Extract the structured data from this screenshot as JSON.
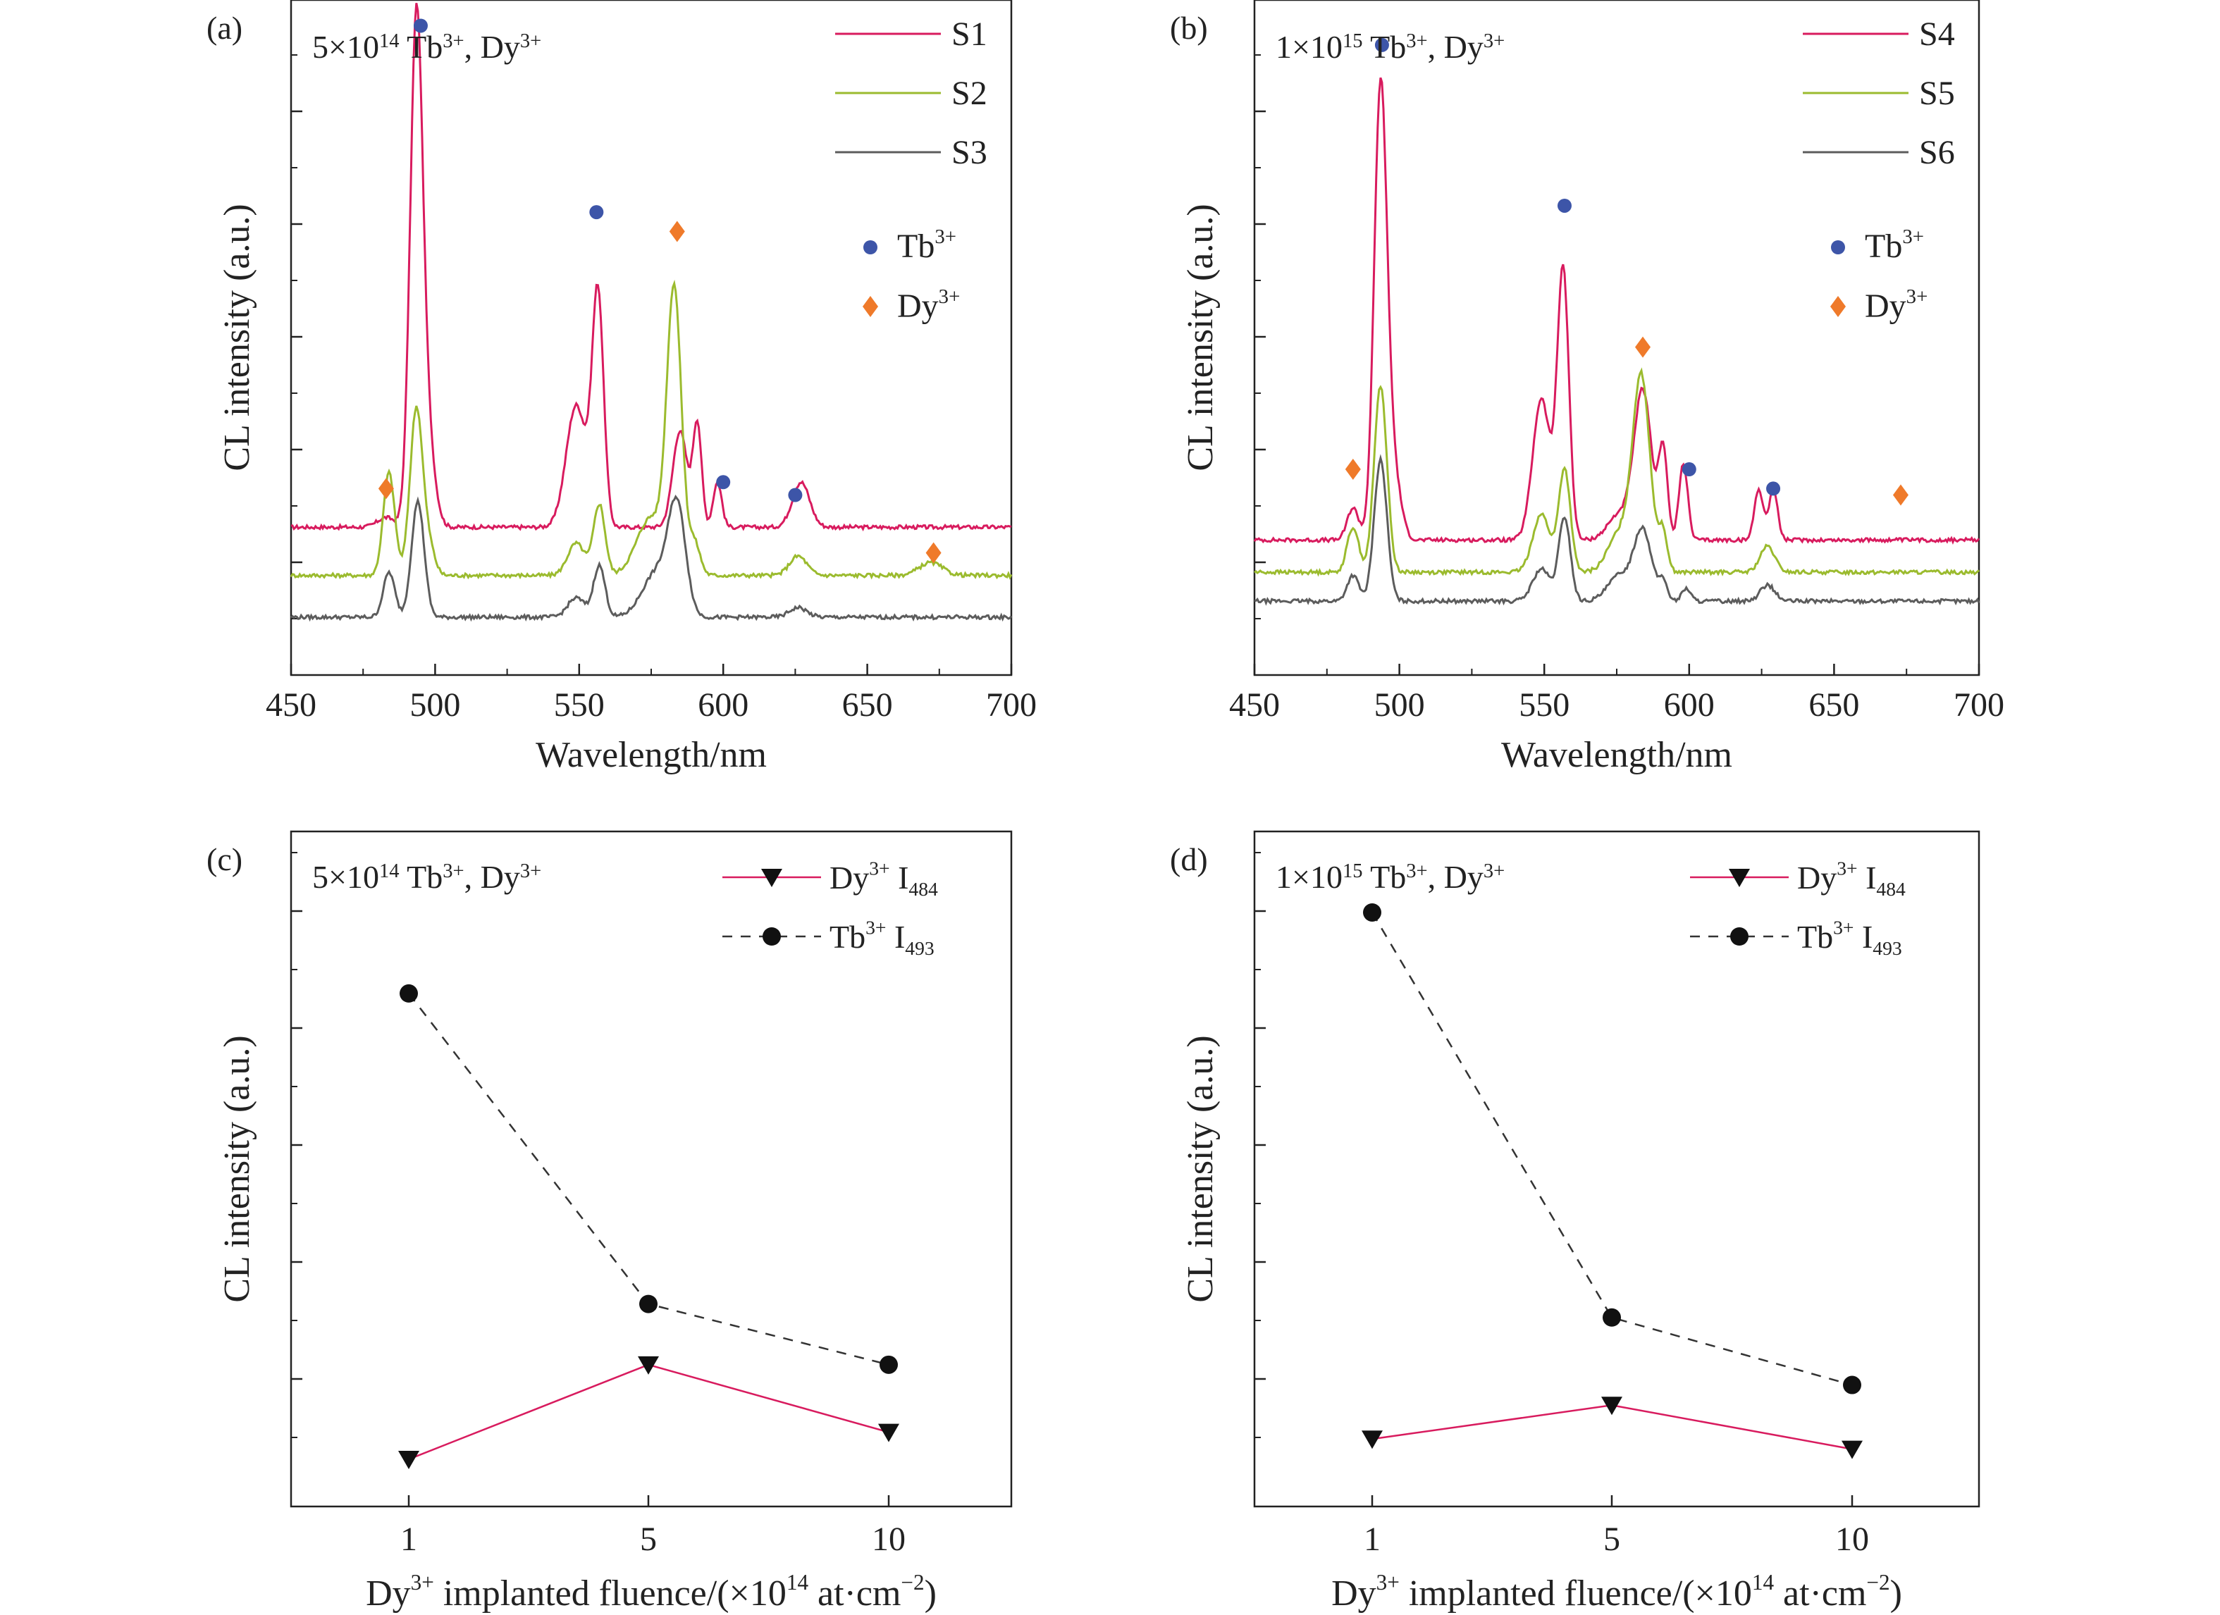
{
  "colors": {
    "s_red": "#d81b5e",
    "s_green": "#9bbb2e",
    "s_green_dark": "#4a9a3e",
    "s_gray": "#5c5c5c",
    "tb_marker": "#3d55a8",
    "dy_marker": "#ef7a2a",
    "dy_line": "#d81b5e",
    "tb_line": "#333333",
    "black": "#111111"
  },
  "chart_data": [
    {
      "panel": "(a)",
      "type": "line",
      "annotation": "5×10¹⁴ Tb³⁺, Dy³⁺",
      "xlabel": "Wavelength/nm",
      "ylabel": "CL intensity (a.u.)",
      "xlim": [
        450,
        700
      ],
      "ylim": [
        -0.05,
        1.0
      ],
      "xticks": [
        "450",
        "500",
        "550",
        "600",
        "650",
        "700"
      ],
      "legend_position": "top-right",
      "series": [
        {
          "name": "S1",
          "color": "#d81b5e",
          "base": 0.18,
          "peaks": [
            [
              483,
              0.015,
              3
            ],
            [
              493.5,
              0.78,
              2.2
            ],
            [
              497.5,
              0.12,
              2.5
            ],
            [
              549,
              0.19,
              3.5
            ],
            [
              556.5,
              0.36,
              2
            ],
            [
              585,
              0.15,
              2.5
            ],
            [
              591,
              0.16,
              1.5
            ],
            [
              598,
              0.07,
              1.5
            ],
            [
              627,
              0.07,
              3
            ]
          ]
        },
        {
          "name": "S2",
          "color": "#9bbb2e",
          "base": 0.105,
          "peaks": [
            [
              484,
              0.16,
              2
            ],
            [
              493.5,
              0.26,
              2.2
            ],
            [
              498,
              0.04,
              2
            ],
            [
              549,
              0.05,
              3
            ],
            [
              557,
              0.11,
              2
            ],
            [
              575,
              0.09,
              5
            ],
            [
              583,
              0.43,
              2.5
            ],
            [
              590,
              0.05,
              2
            ],
            [
              626,
              0.03,
              3
            ],
            [
              672,
              0.02,
              4
            ]
          ]
        },
        {
          "name": "S3",
          "color": "#5c5c5c",
          "base": 0.04,
          "peaks": [
            [
              484,
              0.07,
              2
            ],
            [
              494,
              0.18,
              2.2
            ],
            [
              549,
              0.03,
              3
            ],
            [
              557,
              0.08,
              2
            ],
            [
              577,
              0.07,
              5
            ],
            [
              584,
              0.16,
              3
            ],
            [
              626,
              0.015,
              3
            ]
          ]
        }
      ],
      "markers": {
        "Tb3+": {
          "legend": "Tb",
          "legend_sup": "3+",
          "x": [
            495,
            556,
            600,
            625
          ],
          "y": [
            0.96,
            0.67,
            0.25,
            0.23
          ]
        },
        "Dy3+": {
          "legend": "Dy",
          "legend_sup": "3+",
          "x": [
            483,
            584,
            673
          ],
          "y": [
            0.24,
            0.64,
            0.14
          ]
        }
      }
    },
    {
      "panel": "(b)",
      "type": "line",
      "annotation": "1×10¹⁵ Tb³⁺, Dy³⁺",
      "xlabel": "Wavelength/nm",
      "ylabel": "CL intensity (a.u.)",
      "xlim": [
        450,
        700
      ],
      "ylim": [
        -0.05,
        1.0
      ],
      "xticks": [
        "450",
        "500",
        "550",
        "600",
        "650",
        "700"
      ],
      "legend_position": "top-right",
      "series": [
        {
          "name": "S4",
          "color": "#d81b5e",
          "base": 0.16,
          "peaks": [
            [
              484,
              0.05,
              2
            ],
            [
              493.5,
              0.7,
              2.2
            ],
            [
              498,
              0.1,
              2.5
            ],
            [
              549,
              0.22,
              3
            ],
            [
              556.5,
              0.42,
              2
            ],
            [
              576,
              0.04,
              4
            ],
            [
              584,
              0.23,
              3
            ],
            [
              591,
              0.14,
              1.5
            ],
            [
              598,
              0.12,
              1.5
            ],
            [
              624,
              0.08,
              1.5
            ],
            [
              629,
              0.08,
              1.5
            ]
          ]
        },
        {
          "name": "S5",
          "color": "#9bbb2e",
          "base": 0.11,
          "peaks": [
            [
              484,
              0.07,
              2
            ],
            [
              493.5,
              0.29,
              2.2
            ],
            [
              549,
              0.09,
              3
            ],
            [
              557,
              0.16,
              2
            ],
            [
              576,
              0.06,
              4
            ],
            [
              583.5,
              0.3,
              3
            ],
            [
              591,
              0.06,
              1.5
            ],
            [
              627,
              0.04,
              2.5
            ]
          ]
        },
        {
          "name": "S6",
          "color": "#5c5c5c",
          "base": 0.065,
          "peaks": [
            [
              484,
              0.04,
              2
            ],
            [
              493.5,
              0.22,
              2.2
            ],
            [
              549,
              0.05,
              3
            ],
            [
              557,
              0.13,
              2
            ],
            [
              576,
              0.04,
              4
            ],
            [
              584,
              0.11,
              3
            ],
            [
              591,
              0.03,
              1.5
            ],
            [
              599,
              0.02,
              1.5
            ],
            [
              627,
              0.025,
              2.5
            ]
          ]
        }
      ],
      "markers": {
        "Tb3+": {
          "legend": "Tb",
          "legend_sup": "3+",
          "x": [
            494,
            557,
            600,
            629
          ],
          "y": [
            0.93,
            0.68,
            0.27,
            0.24
          ]
        },
        "Dy3+": {
          "legend": "Dy",
          "legend_sup": "3+",
          "x": [
            484,
            584,
            673
          ],
          "y": [
            0.27,
            0.46,
            0.23
          ]
        }
      }
    },
    {
      "panel": "(c)",
      "type": "line",
      "annotation": "5×10¹⁴ Tb³⁺, Dy³⁺",
      "xlabel": "Dy³⁺ implanted fluence/(×10¹⁴ at·cm⁻²)",
      "ylabel": "CL intensity (a.u.)",
      "categories": [
        "1",
        "5",
        "10"
      ],
      "ylim": [
        0,
        1.0
      ],
      "legend_position": "top-right",
      "series": [
        {
          "name": "Dy³⁺ I484",
          "legend": "Dy",
          "legend_sup": "3+",
          "legend_sub": "484",
          "style": "solid",
          "marker": "triangle-down",
          "values": [
            0.07,
            0.21,
            0.11
          ]
        },
        {
          "name": "Tb³⁺ I493",
          "legend": "Tb",
          "legend_sup": "3+",
          "legend_sub": "493",
          "style": "dashed",
          "marker": "circle",
          "values": [
            0.76,
            0.3,
            0.21
          ]
        }
      ]
    },
    {
      "panel": "(d)",
      "type": "line",
      "annotation": "1×10¹⁵ Tb³⁺, Dy³⁺",
      "xlabel": "Dy³⁺ implanted fluence/(×10¹⁴ at·cm⁻²)",
      "ylabel": "CL intensity (a.u.)",
      "categories": [
        "1",
        "5",
        "10"
      ],
      "ylim": [
        0,
        1.0
      ],
      "legend_position": "top-right",
      "series": [
        {
          "name": "Dy³⁺ I484",
          "legend": "Dy",
          "legend_sup": "3+",
          "legend_sub": "484",
          "style": "solid",
          "marker": "triangle-down",
          "values": [
            0.1,
            0.15,
            0.085
          ]
        },
        {
          "name": "Tb³⁺ I493",
          "legend": "Tb",
          "legend_sup": "3+",
          "legend_sub": "493",
          "style": "dashed",
          "marker": "circle",
          "values": [
            0.88,
            0.28,
            0.18
          ]
        }
      ]
    }
  ]
}
